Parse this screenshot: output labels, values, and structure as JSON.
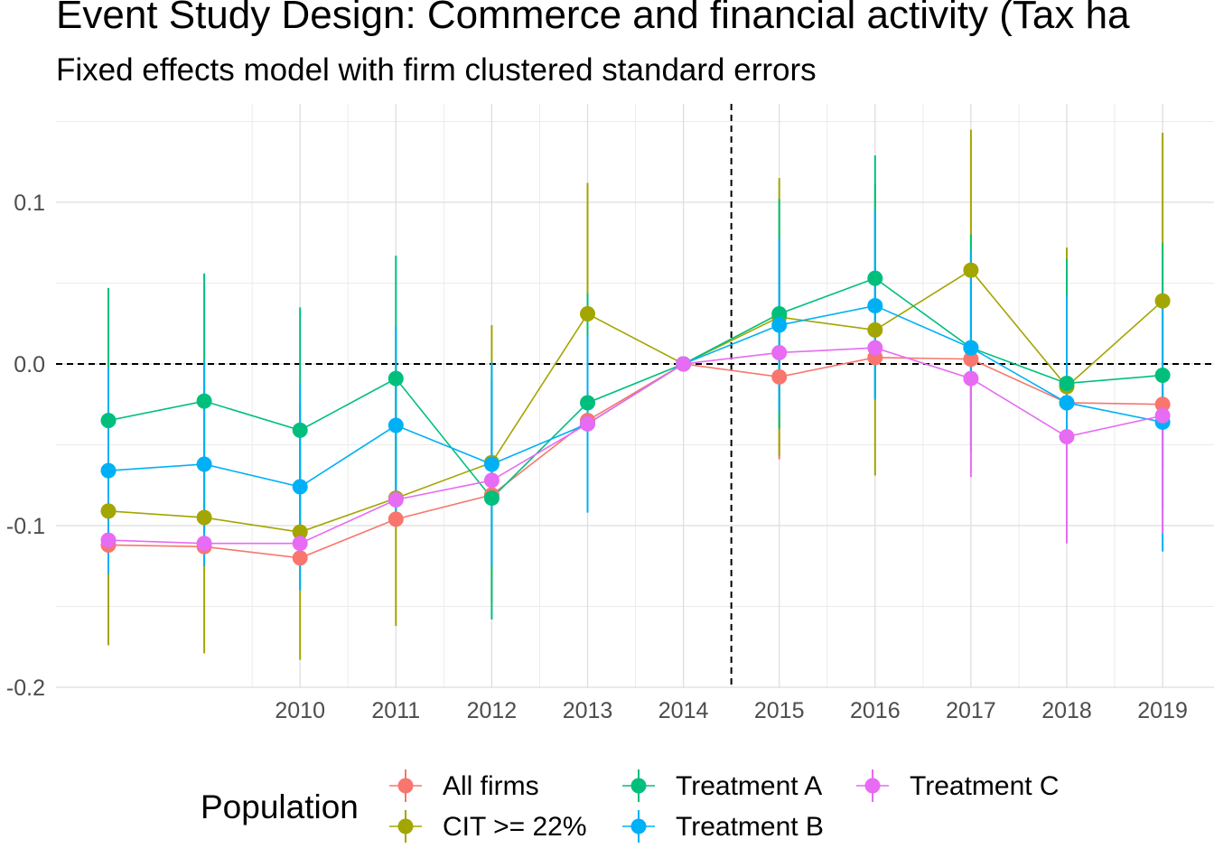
{
  "title": "Event Study Design: Commerce and financial activity (Tax ha",
  "subtitle": "Fixed effects model with firm clustered standard errors",
  "chart_data": {
    "type": "line",
    "title": "Event Study Design: Commerce and financial activity (Tax ha",
    "subtitle": "Fixed effects model with firm clustered standard errors",
    "xlabel": "",
    "ylabel": "",
    "x": [
      2008,
      2009,
      2010,
      2011,
      2012,
      2013,
      2014,
      2015,
      2016,
      2017,
      2018,
      2019
    ],
    "x_tick_labels": [
      "2010",
      "2011",
      "2012",
      "2013",
      "2014",
      "2015",
      "2016",
      "2017",
      "2018",
      "2019"
    ],
    "x_ticks": [
      2010,
      2011,
      2012,
      2013,
      2014,
      2015,
      2016,
      2017,
      2018,
      2019
    ],
    "xlim": [
      2007,
      2019.5
    ],
    "ylim": [
      -0.2,
      0.16
    ],
    "y_ticks": [
      -0.2,
      -0.1,
      0.0,
      0.1
    ],
    "y_tick_labels": [
      "-0.2",
      "-0.1",
      "0.0",
      "0.1"
    ],
    "grid": true,
    "reference_lines": {
      "horizontal": 0.0,
      "vertical": 2014.5,
      "style": "dashed"
    },
    "legend": {
      "title": "Population",
      "position": "bottom"
    },
    "series": [
      {
        "name": "All firms",
        "color": "#F8766D",
        "values": [
          -0.112,
          -0.113,
          -0.12,
          -0.096,
          -0.081,
          -0.035,
          0.0,
          -0.008,
          0.004,
          0.003,
          -0.024,
          -0.025
        ],
        "ci_low": [
          null,
          null,
          null,
          null,
          null,
          null,
          null,
          -0.059,
          null,
          null,
          -0.1,
          null
        ],
        "ci_high": [
          null,
          null,
          null,
          null,
          null,
          null,
          null,
          null,
          null,
          null,
          null,
          null
        ]
      },
      {
        "name": "CIT >= 22%",
        "color": "#A3A500",
        "values": [
          -0.091,
          -0.095,
          -0.104,
          -0.083,
          -0.061,
          0.031,
          0.0,
          0.029,
          0.021,
          0.058,
          -0.014,
          0.039
        ],
        "ci_low": [
          -0.174,
          -0.179,
          -0.183,
          -0.162,
          -0.147,
          -0.05,
          null,
          -0.057,
          -0.069,
          -0.027,
          -0.103,
          -0.064
        ],
        "ci_high": [
          -0.01,
          -0.012,
          -0.025,
          -0.004,
          0.024,
          0.112,
          null,
          0.115,
          0.111,
          0.145,
          0.072,
          0.143
        ]
      },
      {
        "name": "Treatment A",
        "color": "#00BF7D",
        "values": [
          -0.035,
          -0.023,
          -0.041,
          -0.009,
          -0.083,
          -0.024,
          0.0,
          0.031,
          0.053,
          0.01,
          -0.012,
          -0.007
        ],
        "ci_low": [
          -0.117,
          -0.103,
          -0.117,
          -0.085,
          -0.158,
          -0.09,
          null,
          -0.04,
          -0.022,
          -0.055,
          -0.09,
          -0.09
        ],
        "ci_high": [
          0.047,
          0.056,
          0.035,
          0.067,
          -0.009,
          0.044,
          null,
          0.102,
          0.129,
          0.08,
          0.065,
          0.075
        ]
      },
      {
        "name": "Treatment B",
        "color": "#00B0F6",
        "values": [
          -0.066,
          -0.062,
          -0.076,
          -0.038,
          -0.062,
          -0.037,
          0.0,
          0.024,
          0.036,
          0.01,
          -0.024,
          -0.036
        ],
        "ci_low": [
          -0.13,
          -0.125,
          -0.14,
          -0.1,
          -0.125,
          -0.092,
          null,
          -0.03,
          -0.022,
          -0.05,
          -0.09,
          -0.116
        ],
        "ci_high": [
          -0.002,
          0.001,
          -0.012,
          0.023,
          0.001,
          0.018,
          null,
          0.078,
          0.095,
          0.07,
          0.042,
          0.044
        ]
      },
      {
        "name": "Treatment C",
        "color": "#E76BF3",
        "values": [
          -0.109,
          -0.111,
          -0.111,
          -0.084,
          -0.072,
          -0.037,
          0.0,
          0.007,
          0.01,
          -0.009,
          -0.045,
          -0.032
        ],
        "ci_low": [
          null,
          null,
          null,
          null,
          null,
          null,
          null,
          null,
          null,
          -0.07,
          -0.111,
          -0.105
        ],
        "ci_high": [
          null,
          null,
          null,
          null,
          null,
          null,
          null,
          null,
          null,
          null,
          null,
          null
        ]
      }
    ]
  }
}
